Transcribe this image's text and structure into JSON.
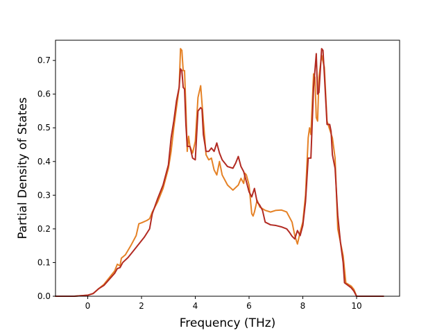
{
  "chart_data": {
    "type": "line",
    "title": "",
    "xlabel": "Frequency (THz)",
    "ylabel": "Partial Density of States",
    "xlim": [
      -1.2,
      11.6
    ],
    "ylim": [
      0.0,
      0.76
    ],
    "xticks": [
      0,
      2,
      4,
      6,
      8,
      10
    ],
    "xtick_labels": [
      "0",
      "2",
      "4",
      "6",
      "8",
      "10"
    ],
    "yticks": [
      0.0,
      0.1,
      0.2,
      0.3,
      0.4,
      0.5,
      0.6,
      0.7
    ],
    "ytick_labels": [
      "0.0",
      "0.1",
      "0.2",
      "0.3",
      "0.4",
      "0.5",
      "0.6",
      "0.7"
    ],
    "grid": false,
    "series": [
      {
        "color": "#e58125",
        "points": [
          [
            -1.2,
            0.0
          ],
          [
            -0.5,
            0.0
          ],
          [
            0.0,
            0.003
          ],
          [
            0.2,
            0.008
          ],
          [
            0.4,
            0.022
          ],
          [
            0.6,
            0.035
          ],
          [
            0.8,
            0.055
          ],
          [
            1.0,
            0.075
          ],
          [
            1.1,
            0.095
          ],
          [
            1.2,
            0.09
          ],
          [
            1.25,
            0.113
          ],
          [
            1.4,
            0.123
          ],
          [
            1.6,
            0.15
          ],
          [
            1.8,
            0.18
          ],
          [
            1.9,
            0.215
          ],
          [
            2.0,
            0.218
          ],
          [
            2.2,
            0.225
          ],
          [
            2.3,
            0.23
          ],
          [
            2.4,
            0.25
          ],
          [
            2.6,
            0.28
          ],
          [
            2.8,
            0.32
          ],
          [
            3.0,
            0.38
          ],
          [
            3.1,
            0.43
          ],
          [
            3.2,
            0.5
          ],
          [
            3.3,
            0.56
          ],
          [
            3.4,
            0.62
          ],
          [
            3.45,
            0.735
          ],
          [
            3.5,
            0.73
          ],
          [
            3.55,
            0.67
          ],
          [
            3.6,
            0.67
          ],
          [
            3.65,
            0.56
          ],
          [
            3.7,
            0.43
          ],
          [
            3.75,
            0.475
          ],
          [
            3.8,
            0.445
          ],
          [
            3.9,
            0.425
          ],
          [
            4.0,
            0.46
          ],
          [
            4.1,
            0.59
          ],
          [
            4.2,
            0.625
          ],
          [
            4.3,
            0.52
          ],
          [
            4.4,
            0.42
          ],
          [
            4.5,
            0.405
          ],
          [
            4.6,
            0.41
          ],
          [
            4.7,
            0.375
          ],
          [
            4.8,
            0.36
          ],
          [
            4.9,
            0.4
          ],
          [
            5.0,
            0.36
          ],
          [
            5.2,
            0.33
          ],
          [
            5.4,
            0.315
          ],
          [
            5.6,
            0.33
          ],
          [
            5.7,
            0.35
          ],
          [
            5.8,
            0.335
          ],
          [
            5.85,
            0.365
          ],
          [
            5.9,
            0.36
          ],
          [
            6.0,
            0.33
          ],
          [
            6.1,
            0.245
          ],
          [
            6.15,
            0.238
          ],
          [
            6.2,
            0.25
          ],
          [
            6.3,
            0.285
          ],
          [
            6.4,
            0.265
          ],
          [
            6.6,
            0.255
          ],
          [
            6.8,
            0.25
          ],
          [
            7.0,
            0.255
          ],
          [
            7.2,
            0.256
          ],
          [
            7.4,
            0.25
          ],
          [
            7.6,
            0.22
          ],
          [
            7.7,
            0.18
          ],
          [
            7.8,
            0.155
          ],
          [
            7.9,
            0.19
          ],
          [
            8.0,
            0.22
          ],
          [
            8.1,
            0.3
          ],
          [
            8.2,
            0.47
          ],
          [
            8.25,
            0.5
          ],
          [
            8.3,
            0.48
          ],
          [
            8.4,
            0.66
          ],
          [
            8.45,
            0.65
          ],
          [
            8.5,
            0.53
          ],
          [
            8.55,
            0.52
          ],
          [
            8.6,
            0.65
          ],
          [
            8.7,
            0.715
          ],
          [
            8.8,
            0.68
          ],
          [
            8.9,
            0.52
          ],
          [
            9.0,
            0.495
          ],
          [
            9.1,
            0.47
          ],
          [
            9.2,
            0.41
          ],
          [
            9.3,
            0.2
          ],
          [
            9.4,
            0.16
          ],
          [
            9.5,
            0.12
          ],
          [
            9.6,
            0.04
          ],
          [
            9.8,
            0.03
          ],
          [
            9.9,
            0.02
          ],
          [
            10.0,
            0.0
          ],
          [
            11.0,
            0.0
          ]
        ]
      },
      {
        "color": "#b22a22",
        "points": [
          [
            -1.2,
            0.0
          ],
          [
            -0.5,
            0.0
          ],
          [
            0.0,
            0.003
          ],
          [
            0.2,
            0.008
          ],
          [
            0.4,
            0.022
          ],
          [
            0.6,
            0.032
          ],
          [
            0.8,
            0.05
          ],
          [
            1.0,
            0.068
          ],
          [
            1.1,
            0.082
          ],
          [
            1.2,
            0.085
          ],
          [
            1.3,
            0.1
          ],
          [
            1.5,
            0.115
          ],
          [
            1.7,
            0.135
          ],
          [
            1.9,
            0.155
          ],
          [
            2.1,
            0.175
          ],
          [
            2.3,
            0.2
          ],
          [
            2.4,
            0.245
          ],
          [
            2.6,
            0.29
          ],
          [
            2.8,
            0.33
          ],
          [
            3.0,
            0.39
          ],
          [
            3.1,
            0.47
          ],
          [
            3.2,
            0.52
          ],
          [
            3.3,
            0.58
          ],
          [
            3.4,
            0.62
          ],
          [
            3.45,
            0.675
          ],
          [
            3.5,
            0.67
          ],
          [
            3.55,
            0.62
          ],
          [
            3.6,
            0.615
          ],
          [
            3.65,
            0.51
          ],
          [
            3.7,
            0.445
          ],
          [
            3.8,
            0.445
          ],
          [
            3.9,
            0.41
          ],
          [
            4.0,
            0.405
          ],
          [
            4.1,
            0.55
          ],
          [
            4.2,
            0.56
          ],
          [
            4.25,
            0.555
          ],
          [
            4.3,
            0.48
          ],
          [
            4.4,
            0.43
          ],
          [
            4.5,
            0.43
          ],
          [
            4.6,
            0.44
          ],
          [
            4.7,
            0.43
          ],
          [
            4.8,
            0.455
          ],
          [
            4.9,
            0.425
          ],
          [
            5.0,
            0.405
          ],
          [
            5.2,
            0.385
          ],
          [
            5.4,
            0.38
          ],
          [
            5.5,
            0.395
          ],
          [
            5.6,
            0.415
          ],
          [
            5.7,
            0.385
          ],
          [
            5.8,
            0.37
          ],
          [
            5.9,
            0.34
          ],
          [
            6.0,
            0.31
          ],
          [
            6.1,
            0.295
          ],
          [
            6.2,
            0.32
          ],
          [
            6.3,
            0.28
          ],
          [
            6.4,
            0.27
          ],
          [
            6.5,
            0.255
          ],
          [
            6.6,
            0.22
          ],
          [
            6.8,
            0.212
          ],
          [
            7.0,
            0.21
          ],
          [
            7.2,
            0.206
          ],
          [
            7.4,
            0.2
          ],
          [
            7.5,
            0.19
          ],
          [
            7.6,
            0.178
          ],
          [
            7.7,
            0.17
          ],
          [
            7.8,
            0.195
          ],
          [
            7.9,
            0.18
          ],
          [
            8.0,
            0.21
          ],
          [
            8.1,
            0.28
          ],
          [
            8.2,
            0.41
          ],
          [
            8.3,
            0.41
          ],
          [
            8.4,
            0.62
          ],
          [
            8.5,
            0.72
          ],
          [
            8.55,
            0.6
          ],
          [
            8.6,
            0.605
          ],
          [
            8.7,
            0.735
          ],
          [
            8.75,
            0.73
          ],
          [
            8.8,
            0.66
          ],
          [
            8.9,
            0.51
          ],
          [
            9.0,
            0.51
          ],
          [
            9.05,
            0.49
          ],
          [
            9.1,
            0.42
          ],
          [
            9.2,
            0.38
          ],
          [
            9.3,
            0.24
          ],
          [
            9.4,
            0.16
          ],
          [
            9.5,
            0.1
          ],
          [
            9.55,
            0.04
          ],
          [
            9.8,
            0.025
          ],
          [
            9.9,
            0.015
          ],
          [
            10.0,
            0.0
          ],
          [
            11.0,
            0.0
          ]
        ]
      }
    ]
  }
}
